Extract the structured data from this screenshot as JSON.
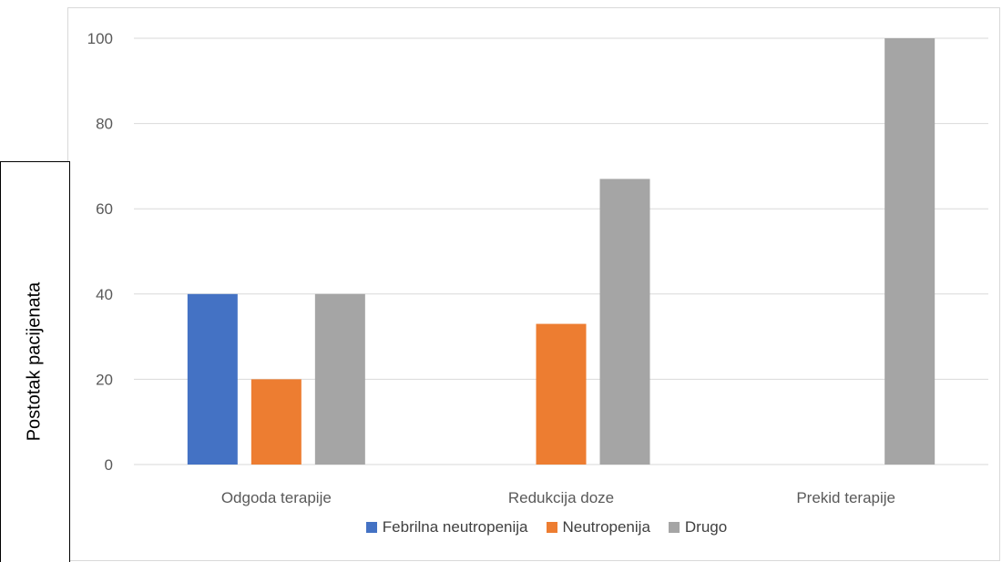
{
  "chart_data": {
    "type": "bar",
    "title": "",
    "xlabel": "",
    "ylabel": "Postotak pacijenata",
    "categories": [
      "Odgoda terapije",
      "Redukcija doze",
      "Prekid terapije"
    ],
    "series": [
      {
        "name": "Febrilna neutropenija",
        "values": [
          40,
          0,
          0
        ],
        "color": "#4472c4"
      },
      {
        "name": "Neutropenija",
        "values": [
          20,
          33,
          0
        ],
        "color": "#ed7d31"
      },
      {
        "name": "Drugo",
        "values": [
          40,
          67,
          100
        ],
        "color": "#a5a5a5"
      }
    ],
    "yticks": [
      "0",
      "20",
      "40",
      "60",
      "80",
      "100"
    ],
    "ylim": [
      0,
      100
    ],
    "grid": true,
    "legend_position": "bottom"
  }
}
